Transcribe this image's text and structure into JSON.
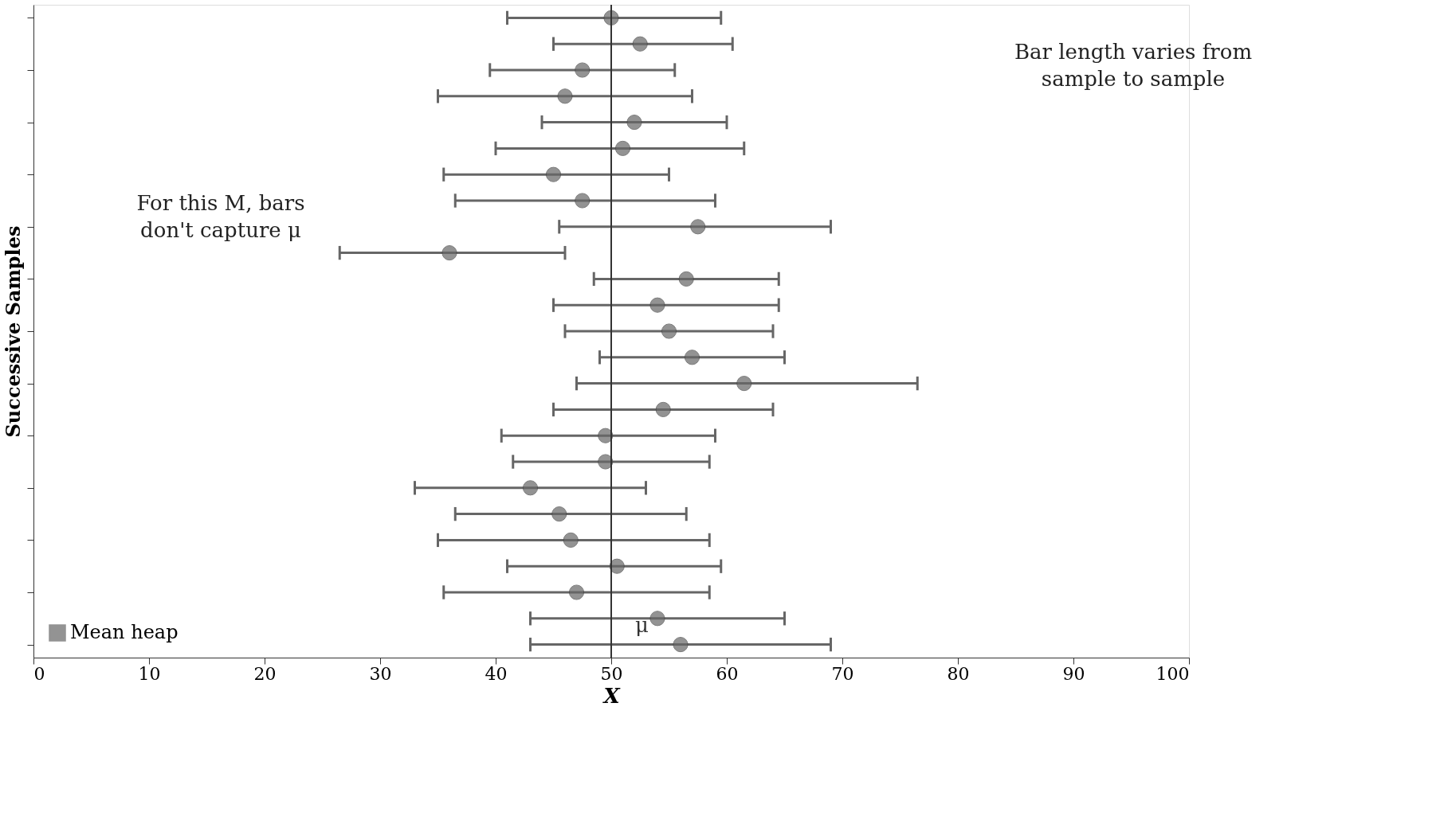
{
  "chart_data": {
    "type": "scatter",
    "orientation": "horizontal",
    "xlabel": "X",
    "ylabel": "Successive Samples",
    "categories": [
      null,
      null,
      null,
      null,
      null,
      null,
      null,
      null,
      null,
      null,
      null,
      null,
      null,
      null,
      null,
      null,
      null,
      null,
      null,
      null,
      null,
      null,
      null,
      null,
      null
    ],
    "series": [
      {
        "name": "Mean heap",
        "color": "#666666",
        "values": [
          50,
          52.5,
          47.5,
          46,
          52,
          51,
          45,
          47.5,
          57.5,
          36,
          56.5,
          54,
          55,
          57,
          61.5,
          54.5,
          49.5,
          49.5,
          43,
          45.5,
          46.5,
          50.5,
          47,
          54,
          56
        ],
        "errors": [
          [
            41,
            59.5
          ],
          [
            45,
            60.5
          ],
          [
            39.5,
            55.5
          ],
          [
            35,
            57
          ],
          [
            44,
            60
          ],
          [
            40,
            61.5
          ],
          [
            35.5,
            55
          ],
          [
            36.5,
            59
          ],
          [
            45.5,
            69
          ],
          [
            26.5,
            46
          ],
          [
            48.5,
            64.5
          ],
          [
            45,
            64.5
          ],
          [
            46,
            64
          ],
          [
            49,
            65
          ],
          [
            47,
            76.5
          ],
          [
            45,
            64
          ],
          [
            40.5,
            59
          ],
          [
            41.5,
            58.5
          ],
          [
            33,
            53
          ],
          [
            36.5,
            56.5
          ],
          [
            35,
            58.5
          ],
          [
            41,
            59.5
          ],
          [
            35.5,
            58.5
          ],
          [
            43,
            65
          ],
          [
            43,
            69
          ]
        ]
      }
    ],
    "xlim": [
      0,
      100
    ],
    "xticks": [
      0,
      10,
      20,
      30,
      40,
      50,
      60,
      70,
      80,
      90,
      100
    ],
    "ref_lines": [
      {
        "axis": "x",
        "value": 50,
        "label": "μ",
        "color": "#333333"
      }
    ],
    "annotations": [
      "For this M, bars don't capture μ",
      "Bar length varies from sample to sample"
    ],
    "legend": "bottom left",
    "marker": "circle",
    "grid": false,
    "tick_labels": "x"
  }
}
